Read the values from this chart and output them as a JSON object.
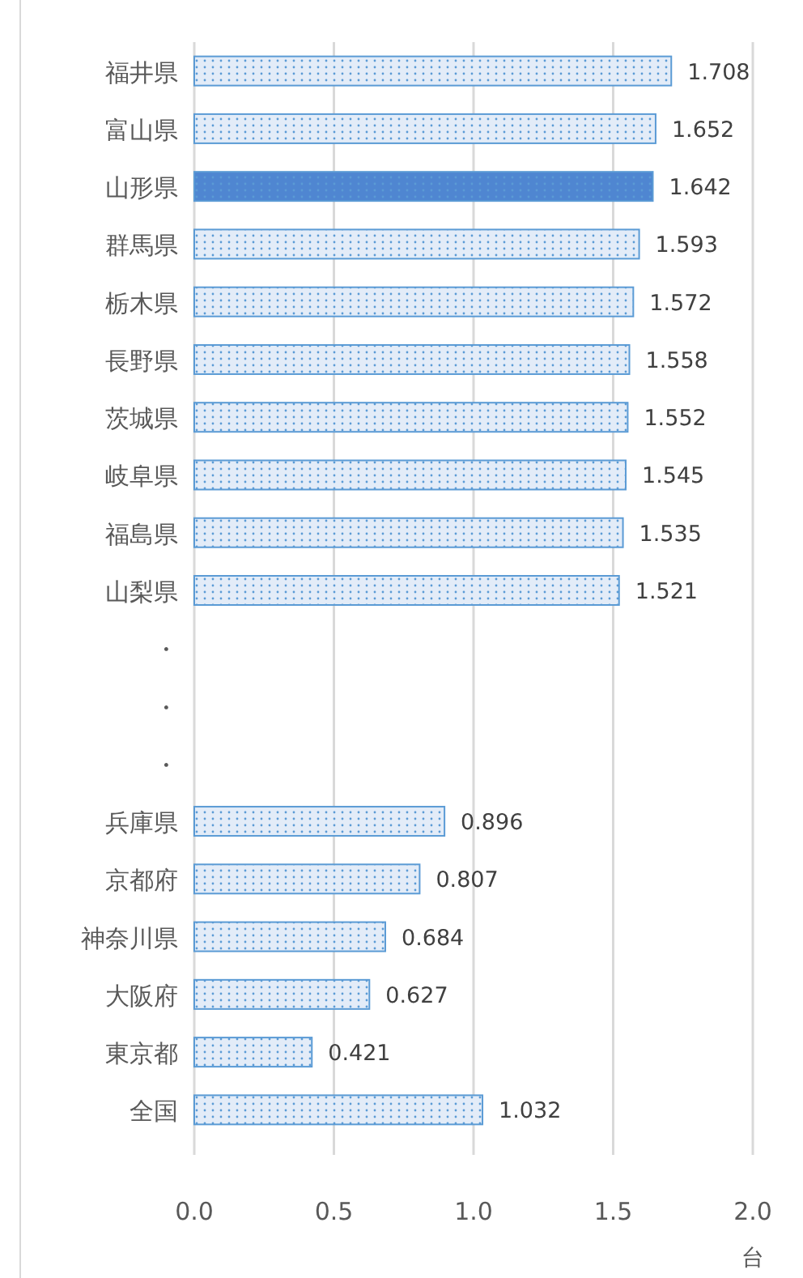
{
  "chart_data": {
    "type": "bar",
    "orientation": "horizontal",
    "xlabel": "台",
    "categories": [
      "福井県",
      "富山県",
      "山形県",
      "群馬県",
      "栃木県",
      "長野県",
      "茨城県",
      "岐阜県",
      "福島県",
      "山梨県",
      "・",
      "・",
      "・",
      "兵庫県",
      "京都府",
      "神奈川県",
      "大阪府",
      "東京都",
      "全国"
    ],
    "values": [
      1.708,
      1.652,
      1.642,
      1.593,
      1.572,
      1.558,
      1.552,
      1.545,
      1.535,
      1.521,
      null,
      null,
      null,
      0.896,
      0.807,
      0.684,
      0.627,
      0.421,
      1.032
    ],
    "colors": [
      "#e3ecf8",
      "#e3ecf8",
      "#4f86d1",
      "#e3ecf8",
      "#e3ecf8",
      "#e3ecf8",
      "#e3ecf8",
      "#e3ecf8",
      "#e3ecf8",
      "#e3ecf8",
      null,
      null,
      null,
      "#e3ecf8",
      "#e3ecf8",
      "#e3ecf8",
      "#e3ecf8",
      "#e3ecf8",
      "#e3ecf8"
    ],
    "xlim": [
      0,
      2
    ],
    "xticks": [
      {
        "value": 0,
        "label": "0.0"
      },
      {
        "value": 0.5,
        "label": "0.5"
      },
      {
        "value": 1,
        "label": "1.0"
      },
      {
        "value": 1.5,
        "label": "1.5"
      },
      {
        "value": 2,
        "label": "2.0"
      }
    ],
    "grid": "x",
    "data_labels": true
  }
}
